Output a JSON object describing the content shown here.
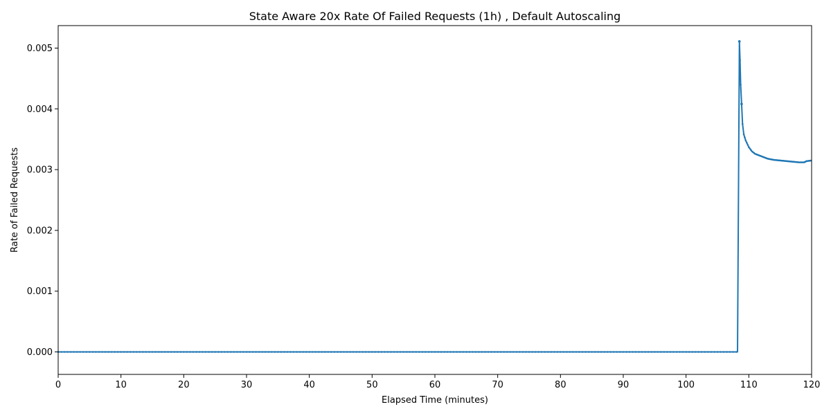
{
  "chart_data": {
    "type": "line",
    "title": "State Aware 20x Rate Of Failed Requests (1h) , Default Autoscaling",
    "xlabel": "Elapsed Time (minutes)",
    "ylabel": "Rate of Failed Requests",
    "xlim": [
      0,
      120
    ],
    "ylim": [
      -0.00037,
      0.00537
    ],
    "x_ticks": [
      0,
      10,
      20,
      30,
      40,
      50,
      60,
      70,
      80,
      90,
      100,
      110,
      120
    ],
    "y_ticks": [
      0.0,
      0.001,
      0.002,
      0.003,
      0.004,
      0.005
    ],
    "x_tick_labels": [
      "0",
      "10",
      "20",
      "30",
      "40",
      "50",
      "60",
      "70",
      "80",
      "90",
      "100",
      "110",
      "120"
    ],
    "y_tick_labels": [
      "0.000",
      "0.001",
      "0.002",
      "0.003",
      "0.004",
      "0.005"
    ],
    "grid": false,
    "legend": "none",
    "series": [
      {
        "color": "#1f77b4",
        "marker": "dot",
        "points": [
          [
            0,
            0
          ],
          [
            20,
            0
          ],
          [
            40,
            0
          ],
          [
            60,
            0
          ],
          [
            80,
            0
          ],
          [
            100,
            0
          ],
          [
            108.2,
            0
          ],
          [
            108.5,
            0.00511
          ],
          [
            108.6,
            0.0048
          ],
          [
            108.7,
            0.0044
          ],
          [
            108.85,
            0.00408
          ],
          [
            109.0,
            0.00375
          ],
          [
            109.2,
            0.00358
          ],
          [
            109.5,
            0.00348
          ],
          [
            110.0,
            0.00337
          ],
          [
            110.5,
            0.0033
          ],
          [
            111.0,
            0.00326
          ],
          [
            112.0,
            0.00322
          ],
          [
            113.0,
            0.00318
          ],
          [
            114.0,
            0.00316
          ],
          [
            115.0,
            0.00315
          ],
          [
            116.0,
            0.00314
          ],
          [
            117.0,
            0.00313
          ],
          [
            118.0,
            0.00312
          ],
          [
            118.8,
            0.00312
          ],
          [
            119.2,
            0.00314
          ],
          [
            120.0,
            0.00315
          ]
        ]
      }
    ]
  }
}
